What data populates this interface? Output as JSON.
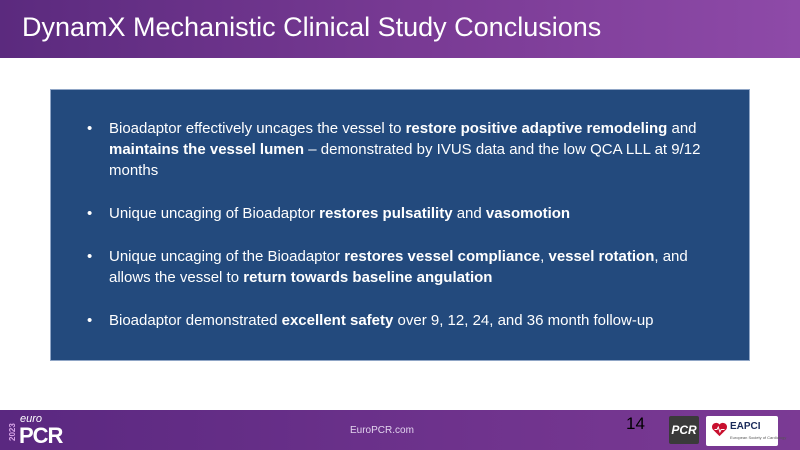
{
  "title": "DynamX Mechanistic Clinical Study Conclusions",
  "bullets": [
    [
      {
        "t": "Bioadaptor effectively uncages the vessel to ",
        "b": false
      },
      {
        "t": "restore positive adaptive remodeling",
        "b": true
      },
      {
        "t": " and ",
        "b": false
      },
      {
        "t": "maintains the vessel lumen",
        "b": true
      },
      {
        "t": " – demonstrated by IVUS data and the low QCA LLL at 9/12 months",
        "b": false
      }
    ],
    [
      {
        "t": "Unique uncaging of Bioadaptor ",
        "b": false
      },
      {
        "t": "restores pulsatility",
        "b": true
      },
      {
        "t": " and ",
        "b": false
      },
      {
        "t": "vasomotion",
        "b": true
      }
    ],
    [
      {
        "t": "Unique uncaging of the Bioadaptor ",
        "b": false
      },
      {
        "t": "restores vessel compliance",
        "b": true
      },
      {
        "t": ", ",
        "b": false
      },
      {
        "t": "vessel rotation",
        "b": true
      },
      {
        "t": ", and allows the vessel to ",
        "b": false
      },
      {
        "t": "return towards baseline angulation",
        "b": true
      }
    ],
    [
      {
        "t": "Bioadaptor demonstrated ",
        "b": false
      },
      {
        "t": "excellent safety",
        "b": true
      },
      {
        "t": " over 9, 12, 24, and 36 month follow-up",
        "b": false
      }
    ]
  ],
  "footer": {
    "url": "EuroPCR.com",
    "page_number": "14",
    "logo": {
      "year": "2023",
      "euro": "euro",
      "pcr": "PCR"
    },
    "pcr_badge": "PCR",
    "eapci_badge": {
      "name": "EAPCI",
      "subtitle": "European Society of Cardiology"
    }
  },
  "colors": {
    "title_bar": "#6b3390",
    "content_box": "#234a7d",
    "footer_bar": "#6a2f8a"
  },
  "icons": [
    "europcr-logo",
    "pcr-badge-icon",
    "eapci-heart-icon"
  ]
}
